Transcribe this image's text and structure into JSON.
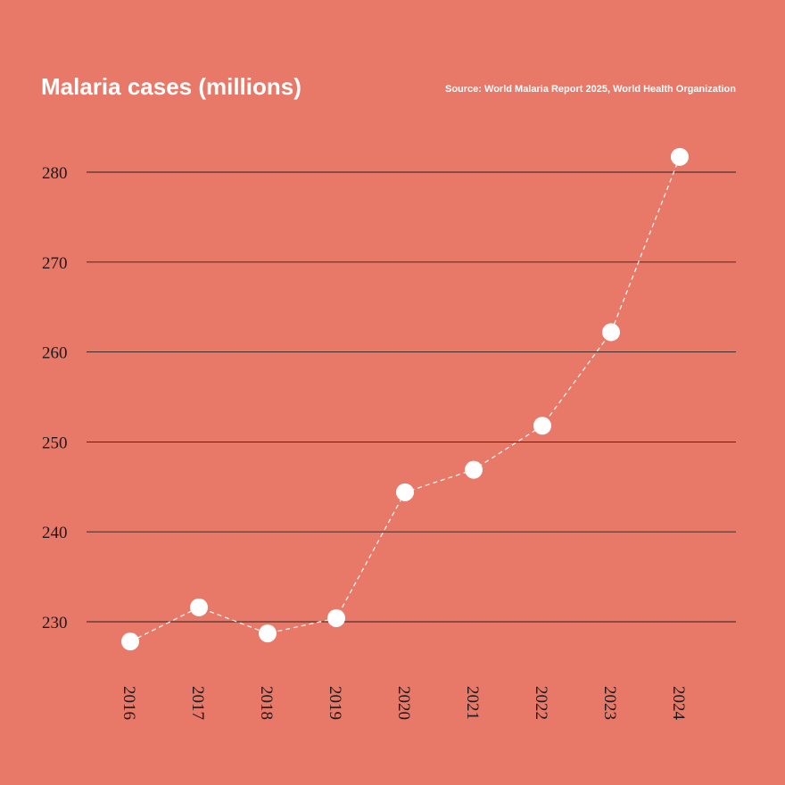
{
  "header": {
    "title": "Malaria cases (millions)",
    "source": "Source: World Malaria Report 2025, World Health Organization"
  },
  "colors": {
    "background": "#e87868",
    "marker": "#ffffff",
    "line": "#ffffff",
    "grid": "#2a1f1c",
    "text": "#1a1a1a"
  },
  "chart_data": {
    "type": "line",
    "title": "Malaria cases (millions)",
    "xlabel": "",
    "ylabel": "",
    "categories": [
      "2016",
      "2017",
      "2018",
      "2019",
      "2020",
      "2021",
      "2022",
      "2023",
      "2024"
    ],
    "series": [
      {
        "name": "Malaria cases (millions)",
        "values": [
          227.8,
          231.6,
          228.7,
          230.4,
          244.4,
          246.9,
          251.8,
          262.2,
          281.7
        ]
      }
    ],
    "yticks": [
      230,
      240,
      250,
      260,
      270,
      280
    ],
    "ytick_labels": [
      "230",
      "240",
      "250",
      "260",
      "270",
      "280"
    ],
    "ylim": [
      230,
      280
    ],
    "grid": true,
    "line_style": "dashed",
    "legend": "none"
  }
}
